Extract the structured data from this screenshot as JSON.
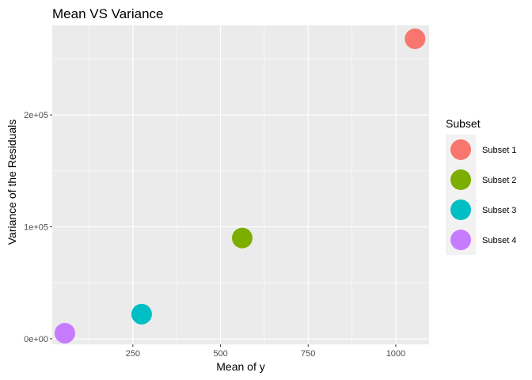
{
  "chart_data": {
    "type": "scatter",
    "title": "Mean VS Variance",
    "xlabel": "Mean of y",
    "ylabel": "Variance of the Residuals",
    "xlim": [
      20,
      1095
    ],
    "ylim": [
      -5000,
      280000
    ],
    "x_ticks": [
      250,
      500,
      750,
      1000
    ],
    "x_tick_labels": [
      "250",
      "500",
      "750",
      "1000"
    ],
    "y_ticks": [
      0,
      100000,
      200000
    ],
    "y_tick_labels": [
      "0e+00",
      "1e+05",
      "2e+05"
    ],
    "grid": true,
    "legend": {
      "title": "Subset",
      "position": "right",
      "items": [
        {
          "label": "Subset 1",
          "color": "#F8766D"
        },
        {
          "label": "Subset 2",
          "color": "#7CAE00"
        },
        {
          "label": "Subset 3",
          "color": "#00BFC4"
        },
        {
          "label": "Subset 4",
          "color": "#C77CFF"
        }
      ]
    },
    "series": [
      {
        "name": "Subset 1",
        "color": "#F8766D",
        "x": [
          1055
        ],
        "y": [
          268000
        ]
      },
      {
        "name": "Subset 2",
        "color": "#7CAE00",
        "x": [
          562
        ],
        "y": [
          90000
        ]
      },
      {
        "name": "Subset 3",
        "color": "#00BFC4",
        "x": [
          275
        ],
        "y": [
          22000
        ]
      },
      {
        "name": "Subset 4",
        "color": "#C77CFF",
        "x": [
          56
        ],
        "y": [
          5000
        ]
      }
    ],
    "panel_background": "#EBEBEB",
    "grid_color": "#FFFFFF"
  }
}
